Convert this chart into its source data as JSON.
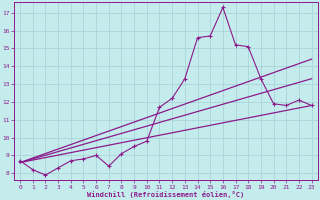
{
  "xlabel": "Windchill (Refroidissement éolien,°C)",
  "bg_color": "#c5eced",
  "grid_color": "#aad4d8",
  "line_color": "#8b1a8b",
  "xlim": [
    -0.5,
    23.5
  ],
  "ylim": [
    7.6,
    17.6
  ],
  "xticks": [
    0,
    1,
    2,
    3,
    4,
    5,
    6,
    7,
    8,
    9,
    10,
    11,
    12,
    13,
    14,
    15,
    16,
    17,
    18,
    19,
    20,
    21,
    22,
    23
  ],
  "yticks": [
    8,
    9,
    10,
    11,
    12,
    13,
    14,
    15,
    16,
    17
  ],
  "line1_x": [
    0,
    1,
    2,
    3,
    4,
    5,
    6,
    7,
    8,
    9,
    10,
    11,
    12,
    13,
    14,
    15,
    16,
    17,
    18,
    19,
    20,
    21,
    22,
    23
  ],
  "line1_y": [
    8.7,
    8.2,
    7.9,
    8.3,
    8.7,
    8.8,
    9.0,
    8.4,
    9.1,
    9.5,
    9.8,
    11.7,
    12.2,
    13.3,
    15.6,
    15.7,
    17.3,
    15.2,
    15.1,
    13.3,
    11.9,
    11.8,
    12.1,
    11.8
  ],
  "line2_x": [
    0,
    23
  ],
  "line2_y": [
    8.6,
    14.4
  ],
  "line3_x": [
    0,
    23
  ],
  "line3_y": [
    8.6,
    11.8
  ],
  "line4_x": [
    0,
    23
  ],
  "line4_y": [
    8.6,
    13.3
  ]
}
